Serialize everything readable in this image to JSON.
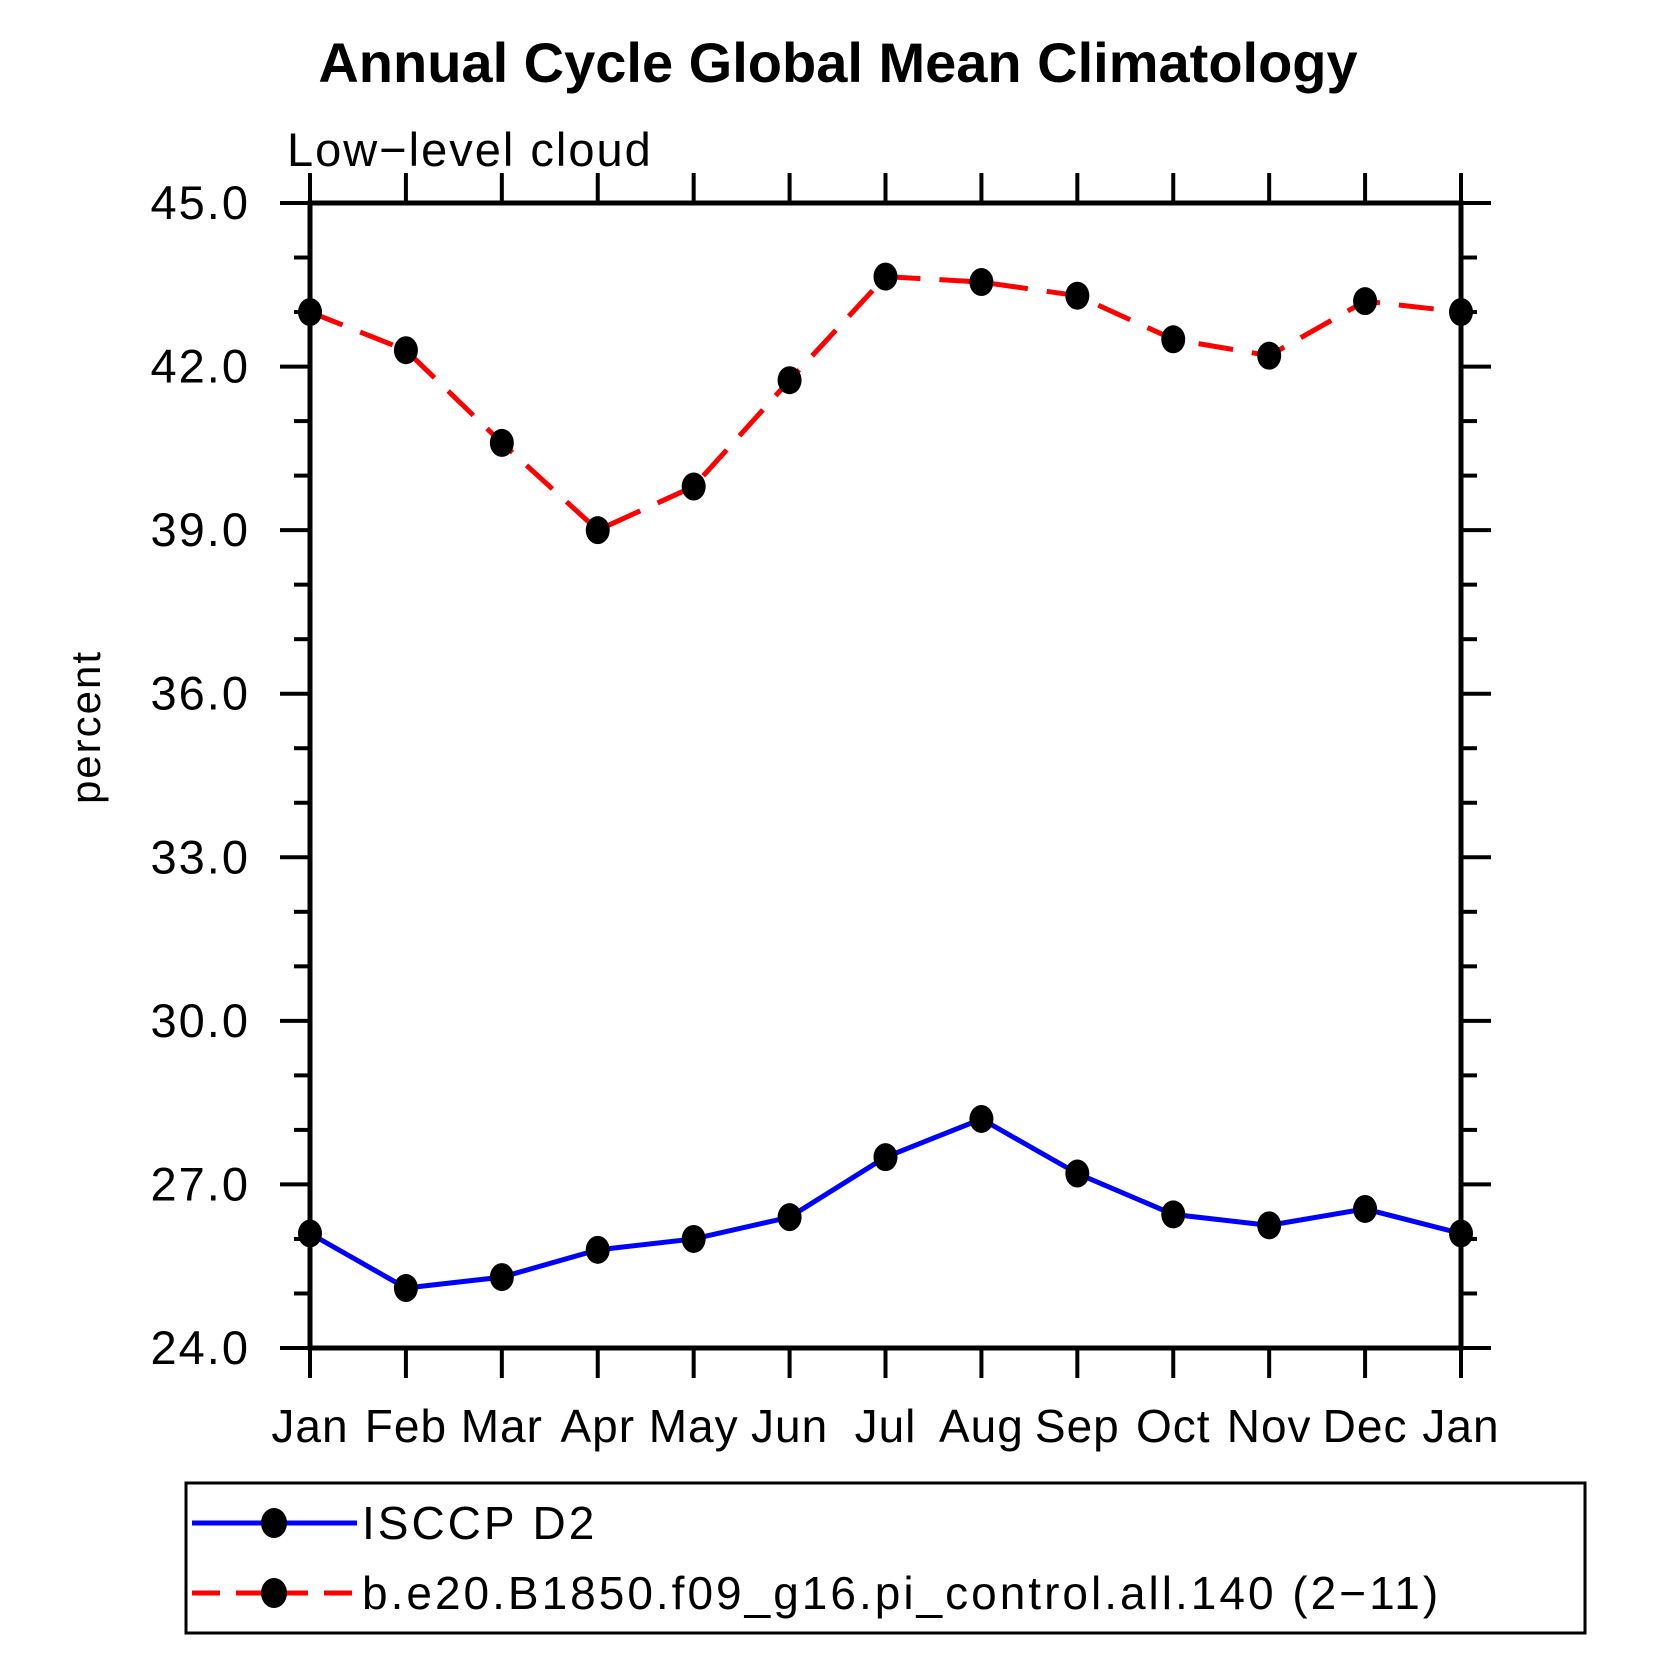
{
  "title": "Annual Cycle Global Mean Climatology",
  "chart_data": {
    "type": "line",
    "title": "Annual Cycle Global Mean Climatology",
    "subtitle": "Low−level cloud",
    "ylabel": "percent",
    "xlabel": "",
    "categories": [
      "Jan",
      "Feb",
      "Mar",
      "Apr",
      "May",
      "Jun",
      "Jul",
      "Aug",
      "Sep",
      "Oct",
      "Nov",
      "Dec",
      "Jan"
    ],
    "ylim": [
      24.0,
      45.0
    ],
    "ytick_major_step": 3,
    "ytick_minor_step": 1,
    "ytick_labels": [
      "24.0",
      "27.0",
      "30.0",
      "33.0",
      "36.0",
      "39.0",
      "42.0",
      "45.0"
    ],
    "grid": false,
    "legend_position": "bottom-left",
    "series": [
      {
        "name": "ISCCP D2",
        "line_style": "solid",
        "color": "#0000ff",
        "marker": "filled-circle",
        "marker_color": "#000000",
        "values": [
          26.1,
          25.1,
          25.3,
          25.8,
          26.0,
          26.4,
          27.5,
          28.2,
          27.2,
          26.45,
          26.25,
          26.55,
          26.1
        ]
      },
      {
        "name": "b.e20.B1850.f09_g16.pi_control.all.140 (2−11)",
        "line_style": "dashed",
        "color": "#ff0000",
        "marker": "filled-circle",
        "marker_color": "#000000",
        "values": [
          43.0,
          42.3,
          40.6,
          39.0,
          39.8,
          41.75,
          43.65,
          43.55,
          43.3,
          42.5,
          42.2,
          43.2,
          43.0
        ]
      }
    ]
  },
  "colors": {
    "background": "#ffffff",
    "axis": "#000000",
    "text": "#000000",
    "series_isccp": "#0000ff",
    "series_model": "#ff0000",
    "marker": "#000000"
  }
}
